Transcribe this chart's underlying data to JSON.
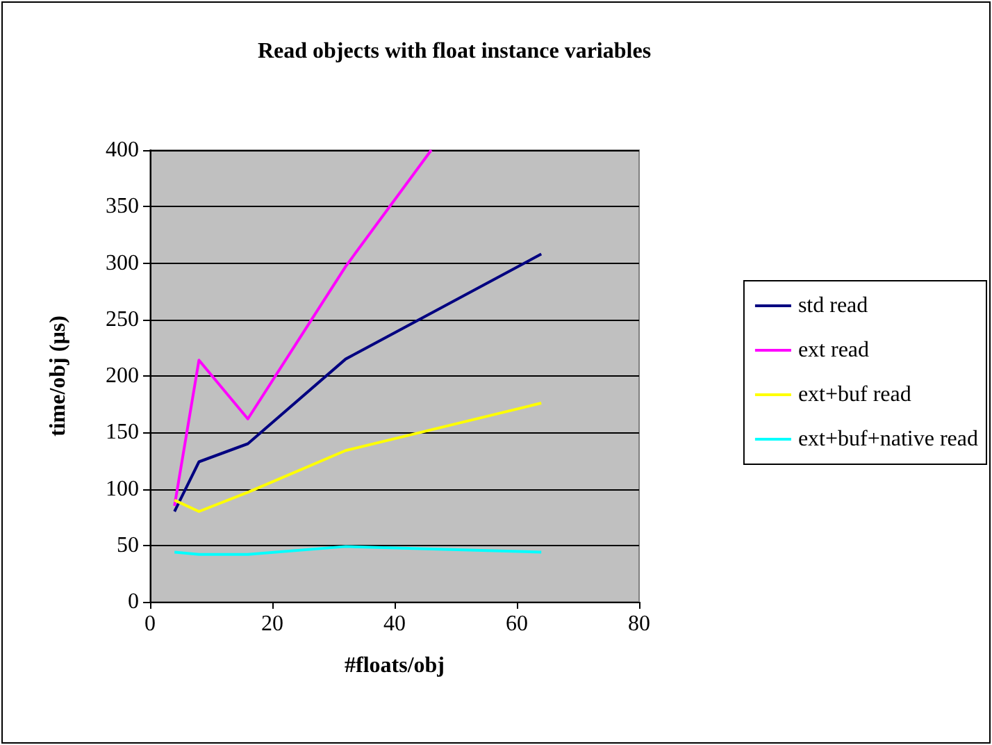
{
  "chart_data": {
    "type": "line",
    "title": "Read objects with float instance variables",
    "xlabel": "#floats/obj",
    "ylabel": "time/obj (µs)",
    "x": [
      4,
      8,
      16,
      32,
      64
    ],
    "series": [
      {
        "name": "std read",
        "color": "#000080",
        "values": [
          80,
          124,
          140,
          215,
          308
        ]
      },
      {
        "name": "ext read",
        "color": "#ff00ff",
        "x": [
          4,
          8,
          16,
          32,
          46
        ],
        "values": [
          85,
          214,
          162,
          297,
          400
        ]
      },
      {
        "name": "ext+buf read",
        "color": "#ffff00",
        "values": [
          90,
          80,
          97,
          134,
          176
        ]
      },
      {
        "name": "ext+buf+native read",
        "color": "#00ffff",
        "values": [
          44,
          42,
          42,
          49,
          44
        ]
      }
    ],
    "xlim": [
      0,
      80
    ],
    "xticks": [
      0,
      20,
      40,
      60,
      80
    ],
    "ylim": [
      0,
      400
    ],
    "yticks": [
      0,
      50,
      100,
      150,
      200,
      250,
      300,
      350,
      400
    ],
    "grid": "y",
    "legend": "right",
    "marker": "none",
    "line_style": "solid"
  }
}
